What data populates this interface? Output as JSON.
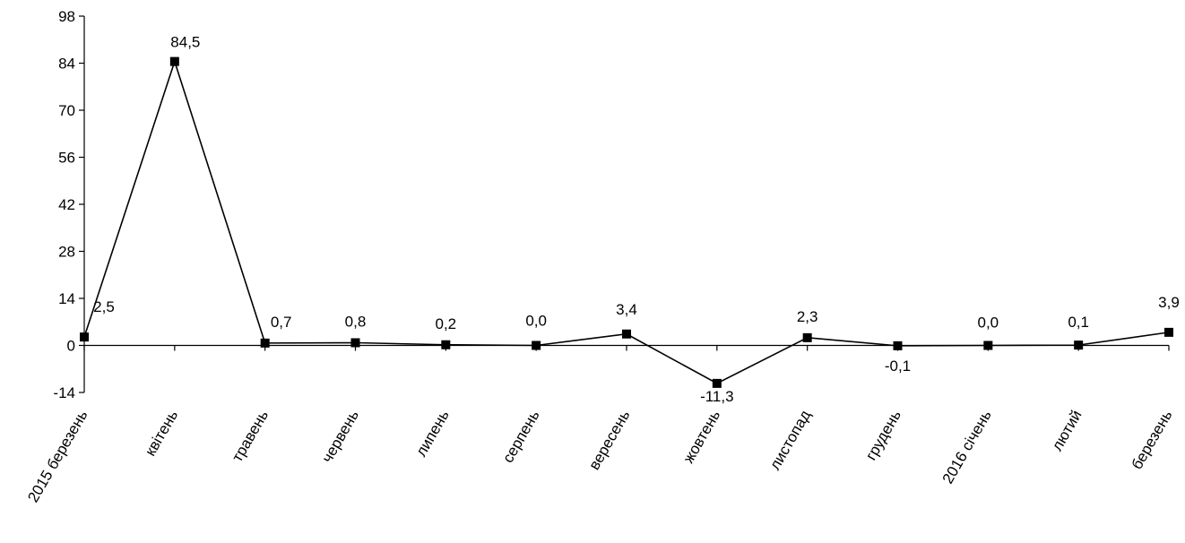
{
  "chart_data": {
    "type": "line",
    "categories": [
      "2015 березень",
      "квітень",
      "травень",
      "червень",
      "липень",
      "серпень",
      "вересень",
      "жовтень",
      "листопад",
      "грудень",
      "2016 січень",
      "лютий",
      "березень"
    ],
    "series": [
      {
        "values": [
          2.5,
          84.5,
          0.7,
          0.8,
          0.2,
          0.0,
          3.4,
          -11.3,
          2.3,
          -0.1,
          0.0,
          0.1,
          3.9
        ]
      }
    ],
    "data_labels": [
      "2,5",
      "84,5",
      "0,7",
      "0,8",
      "0,2",
      "0,0",
      "3,4",
      "-11,3",
      "2,3",
      "-0,1",
      "0,0",
      "0,1",
      "3,9"
    ],
    "yticks": [
      98,
      84,
      70,
      56,
      42,
      28,
      14,
      0,
      -14
    ],
    "ylim": [
      -14,
      98
    ],
    "title": "",
    "xlabel": "",
    "ylabel": "",
    "grid": false,
    "legend": "none",
    "marker": "square",
    "line_color": "#000000"
  }
}
